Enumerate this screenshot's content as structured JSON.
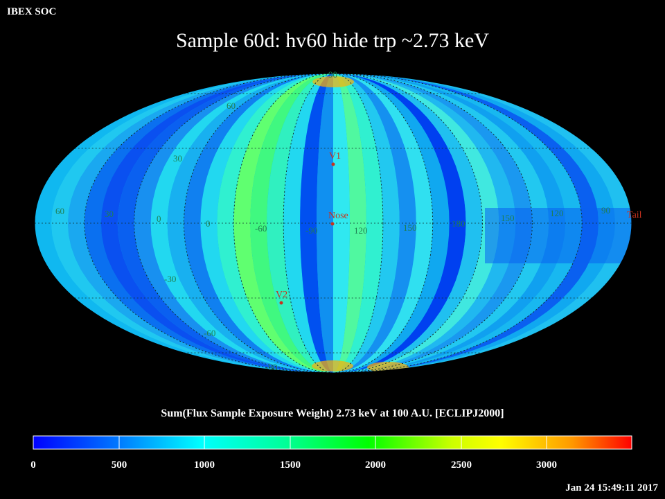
{
  "header": {
    "org": "IBEX SOC",
    "title": "Sample 60d: hv60 hide trp ~2.73 keV",
    "timestamp": "Jan 24 15:49:11 2017"
  },
  "map": {
    "projection": "Mollweide",
    "frame": "ECLIPJ2000",
    "grid": true,
    "latitude_labels": [
      "90",
      "60",
      "30",
      "0",
      "-30",
      "-60",
      "-90"
    ],
    "longitude_labels": [
      "60",
      "30",
      "0",
      "-30",
      "-60",
      "-90",
      "120",
      "150",
      "180",
      "150",
      "120",
      "90"
    ],
    "markers": [
      {
        "name": "V1",
        "lon": 255,
        "lat": 35
      },
      {
        "name": "Nose",
        "lon": 255,
        "lat": 5
      },
      {
        "name": "V2",
        "lon": 290,
        "lat": -32
      },
      {
        "name": "Tail",
        "lon": 75,
        "lat": -5
      }
    ]
  },
  "colorbar": {
    "title": "Sum(Flux Sample Exposure Weight)  2.73 keV at 100 A.U. [ECLIPJ2000]",
    "ticks": [
      "0",
      "500",
      "1000",
      "1500",
      "2000",
      "2500",
      "3000"
    ],
    "min": 0,
    "max": 3500,
    "colors": [
      "#0000ff",
      "#00aaff",
      "#00ffff",
      "#00ffaa",
      "#00ff00",
      "#aaff00",
      "#ffff00",
      "#ffaa00",
      "#ff0000"
    ]
  }
}
